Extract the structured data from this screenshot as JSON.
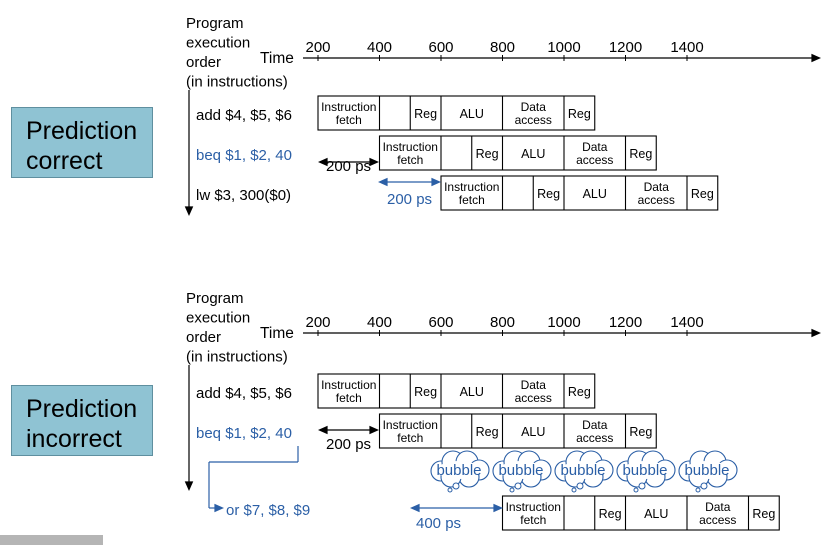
{
  "colors": {
    "label_bg": "#8fc3d3",
    "accent": "#2b5fa6",
    "text": "#000000"
  },
  "common": {
    "axis_header": [
      "Program",
      "execution",
      "order",
      "(in instructions)"
    ],
    "time_label": "Time",
    "ticks": [
      "200",
      "400",
      "600",
      "800",
      "1000",
      "1200",
      "1400"
    ],
    "stage_labels": {
      "ifetch": [
        "Instruction",
        "fetch"
      ],
      "reg": [
        "Reg"
      ],
      "alu": [
        "ALU"
      ],
      "dm": [
        "Data",
        "access"
      ]
    }
  },
  "panels": [
    {
      "title": [
        "Prediction",
        "correct"
      ],
      "instructions": [
        {
          "text": "add $4, $5, $6",
          "color": "black",
          "start": 0
        },
        {
          "text": "beq $1, $2, 40",
          "color": "blue",
          "start": 200
        },
        {
          "text": "lw  $3, 300($0)",
          "color": "black",
          "start": 400
        }
      ],
      "gaps": [
        {
          "label": "200 ps",
          "color": "black"
        },
        {
          "label": "200 ps",
          "color": "blue"
        }
      ]
    },
    {
      "title": [
        "Prediction",
        "incorrect"
      ],
      "instructions": [
        {
          "text": "add $4, $5, $6",
          "color": "black",
          "start": 0
        },
        {
          "text": "beq $1, $2, 40",
          "color": "blue",
          "start": 200
        },
        {
          "text": "or $7, $8, $9",
          "color": "blue",
          "start": 600
        }
      ],
      "gaps": [
        {
          "label": "200 ps",
          "color": "black"
        },
        {
          "label": "400 ps",
          "color": "blue"
        }
      ],
      "bubble_label": "bubble",
      "bubble_count": 5
    }
  ]
}
